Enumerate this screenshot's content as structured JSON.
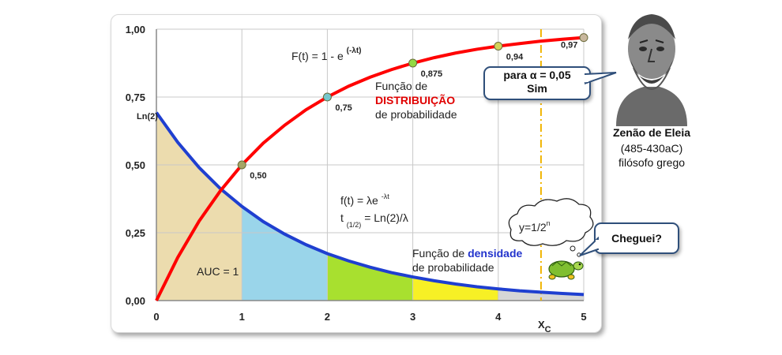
{
  "chart_data": {
    "type": "line",
    "x_ticks": [
      "0",
      "1",
      "2",
      "3",
      "4",
      "5"
    ],
    "y_ticks": [
      "0,00",
      "0,25",
      "0,50",
      "0,75",
      "1,00"
    ],
    "xlim": [
      0,
      5
    ],
    "ylim": [
      0,
      1
    ],
    "lambda": 0.6931,
    "grid": true,
    "series": [
      {
        "name": "F(t) = 1 - e^(-λt)",
        "color": "#ff0000",
        "x": [
          0,
          0.25,
          0.5,
          0.75,
          1,
          1.25,
          1.5,
          1.75,
          2,
          2.25,
          2.5,
          2.75,
          3,
          3.25,
          3.5,
          3.75,
          4,
          4.25,
          4.5,
          4.75,
          5
        ],
        "y": [
          0,
          0.159,
          0.293,
          0.405,
          0.5,
          0.58,
          0.646,
          0.703,
          0.75,
          0.79,
          0.823,
          0.851,
          0.875,
          0.895,
          0.912,
          0.926,
          0.9375,
          0.947,
          0.956,
          0.963,
          0.969
        ]
      },
      {
        "name": "f(t) = λe^(-λt)",
        "color": "#1f3fd0",
        "x": [
          0,
          0.25,
          0.5,
          0.75,
          1,
          1.25,
          1.5,
          1.75,
          2,
          2.25,
          2.5,
          2.75,
          3,
          3.25,
          3.5,
          3.75,
          4,
          4.25,
          4.5,
          4.75,
          5
        ],
        "y": [
          0.693,
          0.583,
          0.49,
          0.412,
          0.347,
          0.291,
          0.245,
          0.206,
          0.173,
          0.146,
          0.123,
          0.103,
          0.087,
          0.073,
          0.061,
          0.051,
          0.043,
          0.036,
          0.031,
          0.026,
          0.022
        ]
      }
    ],
    "auc_fill_colors": [
      "#ecdcae",
      "#9ad5ea",
      "#a8e02f",
      "#f7f025",
      "#d6d6d6"
    ],
    "points": [
      {
        "x": 1,
        "y": 0.5,
        "label": "0,50",
        "color": "#a5a565"
      },
      {
        "x": 2,
        "y": 0.75,
        "label": "0,75",
        "color": "#74c7cd"
      },
      {
        "x": 3,
        "y": 0.875,
        "label": "0,875",
        "color": "#94d944"
      },
      {
        "x": 4,
        "y": 0.9375,
        "label": "0,94",
        "color": "#d3d35a"
      },
      {
        "x": 5,
        "y": 0.969,
        "label": "0,97",
        "color": "#c8b79d"
      }
    ],
    "ln2_label": "Ln(2)",
    "xc_label": "X",
    "xc_sub": "C",
    "xc_value": 4.5,
    "annotations": {
      "cdf_formula_main": "F(t) = 1 - e",
      "cdf_formula_sup": "(-λt)",
      "cdf_desc_1": "Função de",
      "cdf_desc_2": "DISTRIBUIÇÃO",
      "cdf_desc_3": "de probabilidade",
      "pdf_formula_main": "f(t) = λe",
      "pdf_formula_sup": "-λt",
      "half_life_t": "t",
      "half_life_sub": "(1/2)",
      "half_life_rest": "= Ln(2)/λ",
      "pdf_desc_1a": "Função de ",
      "pdf_desc_1b": "densidade",
      "pdf_desc_2": "de probabilidade",
      "auc": "AUC = 1"
    }
  },
  "callouts": {
    "alpha_line1": "para α = 0,05",
    "alpha_line2": "Sim",
    "cloud_text": "y=1/2",
    "cloud_sup": "n",
    "cheguei": "Cheguei?"
  },
  "philosopher": {
    "name": "Zenão de Eleia",
    "dates": "(485-430aC)",
    "role": "filósofo grego"
  }
}
